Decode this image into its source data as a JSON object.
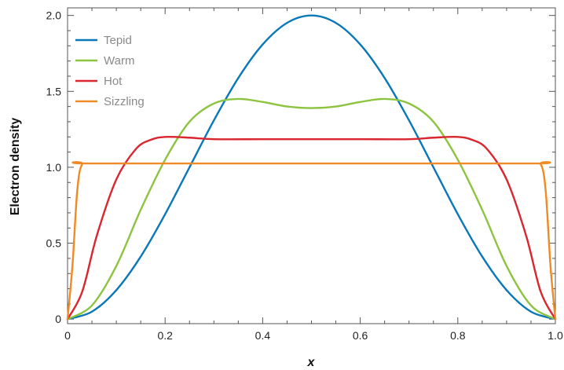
{
  "chart_data": {
    "type": "line",
    "xlabel": "x",
    "ylabel": "Electron density",
    "xlim": [
      0,
      1.0
    ],
    "ylim": [
      -0.03,
      2.05
    ],
    "x_ticks": [
      0,
      0.2,
      0.4,
      0.6,
      0.8,
      1.0
    ],
    "x_tick_labels": [
      "0",
      "0.2",
      "0.4",
      "0.6",
      "0.8",
      "1.0"
    ],
    "y_ticks": [
      0,
      0.5,
      1.0,
      1.5,
      2.0
    ],
    "y_tick_labels": [
      "0",
      "0.5",
      "1.0",
      "1.5",
      "2.0"
    ],
    "grid": false,
    "legend_position": "top-left",
    "series": [
      {
        "name": "Tepid",
        "color": "#0a78b8",
        "x": [
          0,
          0.05,
          0.1,
          0.15,
          0.2,
          0.25,
          0.3,
          0.35,
          0.4,
          0.45,
          0.5,
          0.55,
          0.6,
          0.65,
          0.7,
          0.75,
          0.8,
          0.85,
          0.9,
          0.95,
          1.0
        ],
        "y": [
          0,
          0.049,
          0.191,
          0.412,
          0.691,
          1.0,
          1.309,
          1.588,
          1.809,
          1.951,
          2.0,
          1.951,
          1.809,
          1.588,
          1.309,
          1.0,
          0.691,
          0.412,
          0.191,
          0.049,
          0
        ]
      },
      {
        "name": "Warm",
        "color": "#8cc43f",
        "x": [
          0,
          0.05,
          0.1,
          0.15,
          0.2,
          0.25,
          0.3,
          0.35,
          0.4,
          0.45,
          0.5,
          0.55,
          0.6,
          0.65,
          0.7,
          0.75,
          0.8,
          0.85,
          0.9,
          0.95,
          1.0
        ],
        "y": [
          0,
          0.09,
          0.35,
          0.72,
          1.05,
          1.3,
          1.42,
          1.45,
          1.43,
          1.4,
          1.39,
          1.4,
          1.43,
          1.45,
          1.42,
          1.3,
          1.05,
          0.72,
          0.35,
          0.09,
          0
        ]
      },
      {
        "name": "Hot",
        "color": "#d9262f",
        "x": [
          0,
          0.03,
          0.06,
          0.1,
          0.14,
          0.17,
          0.2,
          0.25,
          0.3,
          0.4,
          0.5,
          0.6,
          0.7,
          0.75,
          0.8,
          0.83,
          0.86,
          0.9,
          0.94,
          0.97,
          1.0
        ],
        "y": [
          0,
          0.18,
          0.55,
          0.92,
          1.12,
          1.18,
          1.2,
          1.195,
          1.185,
          1.185,
          1.185,
          1.185,
          1.185,
          1.195,
          1.2,
          1.18,
          1.12,
          0.92,
          0.55,
          0.18,
          0
        ]
      },
      {
        "name": "Sizzling",
        "color": "#f08a24",
        "x": [
          0,
          0.01,
          0.02,
          0.03,
          0.05,
          0.5,
          0.95,
          0.97,
          0.98,
          0.99,
          1.0
        ],
        "y": [
          0,
          0.35,
          0.85,
          1.02,
          1.025,
          1.025,
          1.025,
          1.02,
          0.85,
          0.35,
          0
        ]
      }
    ]
  }
}
